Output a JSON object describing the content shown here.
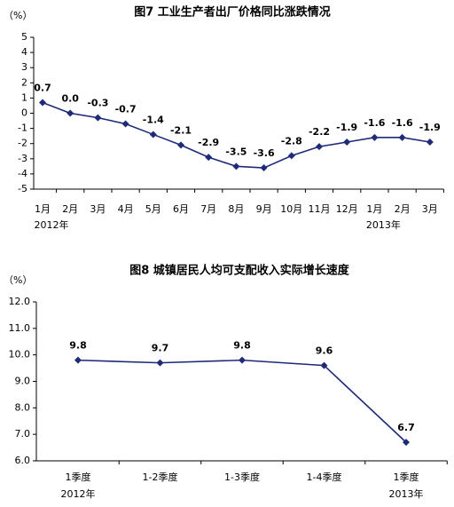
{
  "chart_data": [
    {
      "type": "line",
      "title": "图7 工业生产者出厂价格同比涨跌情况",
      "y_unit": "（%）",
      "categories": [
        "1月",
        "2月",
        "3月",
        "4月",
        "5月",
        "6月",
        "7月",
        "8月",
        "9月",
        "10月",
        "11月",
        "12月",
        "1月",
        "2月",
        "3月"
      ],
      "year_labels": [
        "2012年",
        null,
        null,
        null,
        null,
        null,
        null,
        null,
        null,
        null,
        null,
        null,
        "2013年",
        null,
        null
      ],
      "series": [
        {
          "color": "#1f2a78",
          "values": [
            0.7,
            0.0,
            -0.3,
            -0.7,
            -1.4,
            -2.1,
            -2.9,
            -3.5,
            -3.6,
            -2.8,
            -2.2,
            -1.9,
            -1.6,
            -1.6,
            -1.9
          ],
          "value_labels": [
            "0.7",
            "0.0",
            "-0.3",
            "-0.7",
            "-1.4",
            "-2.1",
            "-2.9",
            "-3.5",
            "-3.6",
            "-2.8",
            "-2.2",
            "-1.9",
            "-1.6",
            "-1.6",
            "-1.9"
          ]
        }
      ],
      "ylim": [
        -5,
        5
      ],
      "yticks": [
        -5,
        -4,
        -3,
        -2,
        -1,
        0,
        1,
        2,
        3,
        4,
        5
      ]
    },
    {
      "type": "line",
      "title": "图8 城镇居民人均可支配收入实际增长速度",
      "y_unit": "（%）",
      "categories": [
        "1季度",
        "1-2季度",
        "1-3季度",
        "1-4季度",
        "1季度"
      ],
      "year_labels": [
        "2012年",
        null,
        null,
        null,
        "2013年"
      ],
      "series": [
        {
          "color": "#1f2a78",
          "values": [
            9.8,
            9.7,
            9.8,
            9.6,
            6.7
          ]
        }
      ],
      "ylim": [
        6,
        12
      ],
      "yticks": [
        {
          "value": 6,
          "label": "6.0"
        },
        {
          "value": 7,
          "label": "7.0"
        },
        {
          "value": 8,
          "label": "8.0"
        },
        {
          "value": 9,
          "label": "9.0"
        },
        {
          "value": 10,
          "label": "10.0"
        },
        {
          "value": 11,
          "label": "11.0"
        },
        {
          "value": 12,
          "label": "12.0"
        }
      ]
    }
  ]
}
